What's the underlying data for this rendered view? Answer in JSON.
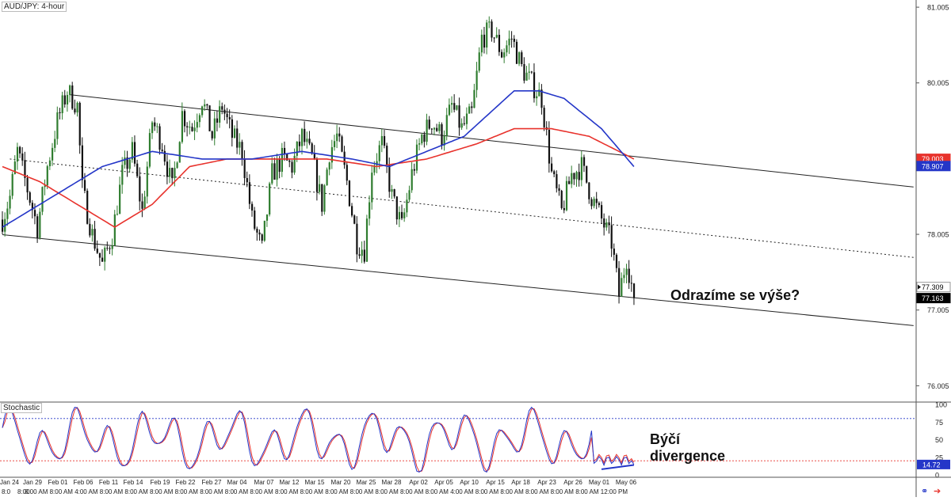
{
  "main_chart": {
    "title": "AUD/JPY: 4-hour",
    "annotation": "Odrazíme se výše?",
    "price_ticks": [
      "81.005",
      "80.005",
      "79.005",
      "78.005",
      "77.005",
      "76.005"
    ],
    "price_badges": [
      {
        "label": "79.003",
        "color": "#e8322c",
        "series": "ma-red"
      },
      {
        "label": "78.907",
        "color": "#2436c8",
        "series": "ma-blue"
      },
      {
        "label": "77.309",
        "color": "#ffffff",
        "series": "last-high",
        "text_color": "#000000"
      },
      {
        "label": "77.163",
        "color": "#000000",
        "series": "last-close",
        "text_color": "#ffffff"
      }
    ]
  },
  "stochastic": {
    "title": "Stochastic",
    "annotation_line1": "Býčí",
    "annotation_line2": "divergence",
    "ticks": [
      "100",
      "75",
      "50",
      "25",
      "0"
    ],
    "badges": [
      {
        "label": "14.72",
        "color": "#2436c8"
      }
    ],
    "levels": [
      80,
      20
    ]
  },
  "time_axis": {
    "date_labels": [
      "Jan 24",
      "Jan 29",
      "Feb 01",
      "Feb 06",
      "Feb 11",
      "Feb 14",
      "Feb 19",
      "Feb 22",
      "Feb 27",
      "Mar 04",
      "Mar 07",
      "Mar 12",
      "Mar 15",
      "Mar 20",
      "Mar 25",
      "Mar 28",
      "Apr 02",
      "Apr 05",
      "Apr 10",
      "Apr 15",
      "Apr 18",
      "Apr 23",
      "Apr 26",
      "May 01",
      "May 06"
    ],
    "time_labels": [
      "8:0",
      "8:00",
      "8:00 AM",
      "8:00 AM",
      "4:00 AM",
      "8:00 AM",
      "8:00 AM",
      "8:00 AM",
      "8:00 AM",
      "8:00 AM",
      "8:00 AM",
      "8:00 AM",
      "8:00 AM",
      "8:00 AM",
      "8:00 AM",
      "8:00 AM",
      "8:00 AM",
      "8:00 AM",
      "8:00 AM",
      "4:00 AM",
      "8:00 AM",
      "8:00 AM",
      "8:00 AM",
      "8:00 AM",
      "8:00 AM",
      "12:00 PM"
    ]
  },
  "colors": {
    "bull": "#2f7d2f",
    "bear": "#111111",
    "ma_red": "#e8322c",
    "ma_blue": "#2436c8",
    "stoch_k": "#2436c8",
    "stoch_d": "#e8322c",
    "divergence": "#2436c8"
  },
  "icons": [
    "link-icon",
    "arrow-right-icon"
  ],
  "chart_data": {
    "type": "candlestick",
    "title": "AUD/JPY: 4-hour",
    "ylim": [
      75.8,
      81.1
    ],
    "price_path_anchors": [
      [
        0,
        78.2
      ],
      [
        3,
        78.5
      ],
      [
        6,
        79.1
      ],
      [
        10,
        78.6
      ],
      [
        14,
        78.1
      ],
      [
        18,
        78.9
      ],
      [
        22,
        79.5
      ],
      [
        26,
        79.9
      ],
      [
        30,
        79.7
      ],
      [
        32,
        78.6
      ],
      [
        36,
        78.0
      ],
      [
        40,
        77.6
      ],
      [
        44,
        78.0
      ],
      [
        48,
        78.8
      ],
      [
        52,
        79.1
      ],
      [
        56,
        78.3
      ],
      [
        60,
        79.5
      ],
      [
        64,
        79.2
      ],
      [
        68,
        78.6
      ],
      [
        72,
        79.6
      ],
      [
        76,
        79.4
      ],
      [
        80,
        79.8
      ],
      [
        84,
        79.3
      ],
      [
        88,
        79.7
      ],
      [
        92,
        79.3
      ],
      [
        96,
        79.1
      ],
      [
        100,
        78.2
      ],
      [
        104,
        77.8
      ],
      [
        108,
        78.8
      ],
      [
        112,
        79.0
      ],
      [
        116,
        78.9
      ],
      [
        120,
        79.3
      ],
      [
        124,
        79.0
      ],
      [
        128,
        78.4
      ],
      [
        131,
        79.1
      ],
      [
        134,
        79.3
      ],
      [
        138,
        78.7
      ],
      [
        142,
        77.9
      ],
      [
        145,
        77.8
      ],
      [
        148,
        78.9
      ],
      [
        152,
        79.2
      ],
      [
        156,
        78.5
      ],
      [
        160,
        78.1
      ],
      [
        164,
        78.8
      ],
      [
        168,
        79.3
      ],
      [
        172,
        79.5
      ],
      [
        176,
        79.3
      ],
      [
        180,
        79.7
      ],
      [
        184,
        79.4
      ],
      [
        188,
        79.6
      ],
      [
        192,
        80.6
      ],
      [
        196,
        80.7
      ],
      [
        200,
        80.4
      ],
      [
        204,
        80.6
      ],
      [
        208,
        80.2
      ],
      [
        212,
        80.0
      ],
      [
        216,
        79.8
      ],
      [
        220,
        78.8
      ],
      [
        224,
        78.3
      ],
      [
        228,
        78.8
      ],
      [
        232,
        78.9
      ],
      [
        236,
        78.5
      ],
      [
        240,
        78.2
      ],
      [
        244,
        77.9
      ],
      [
        247,
        77.2
      ],
      [
        250,
        77.7
      ],
      [
        253,
        77.16
      ]
    ],
    "ma_blue_anchors": [
      [
        0,
        78.1
      ],
      [
        20,
        78.5
      ],
      [
        40,
        78.9
      ],
      [
        60,
        79.1
      ],
      [
        80,
        79.0
      ],
      [
        100,
        79.0
      ],
      [
        120,
        79.1
      ],
      [
        140,
        79.0
      ],
      [
        155,
        78.9
      ],
      [
        170,
        79.1
      ],
      [
        185,
        79.3
      ],
      [
        195,
        79.6
      ],
      [
        205,
        79.9
      ],
      [
        215,
        79.9
      ],
      [
        225,
        79.8
      ],
      [
        240,
        79.4
      ],
      [
        253,
        78.9
      ]
    ],
    "ma_red_anchors": [
      [
        0,
        78.9
      ],
      [
        15,
        78.7
      ],
      [
        30,
        78.4
      ],
      [
        45,
        78.1
      ],
      [
        60,
        78.4
      ],
      [
        75,
        78.9
      ],
      [
        90,
        79.0
      ],
      [
        110,
        79.0
      ],
      [
        130,
        79.0
      ],
      [
        150,
        78.9
      ],
      [
        170,
        79.0
      ],
      [
        190,
        79.2
      ],
      [
        205,
        79.4
      ],
      [
        220,
        79.4
      ],
      [
        235,
        79.3
      ],
      [
        253,
        79.0
      ]
    ],
    "channel_lines": [
      {
        "name": "upper",
        "x0": 27,
        "y0": 79.85,
        "x1": 365,
        "y1": 78.63,
        "style": "solid"
      },
      {
        "name": "middle",
        "x0": 3,
        "y0": 79.0,
        "x1": 365,
        "y1": 77.7,
        "style": "dotted"
      },
      {
        "name": "lower",
        "x0": 0,
        "y0": 78.0,
        "x1": 365,
        "y1": 76.8,
        "style": "solid"
      }
    ],
    "stoch_levels": [
      80,
      20
    ]
  }
}
